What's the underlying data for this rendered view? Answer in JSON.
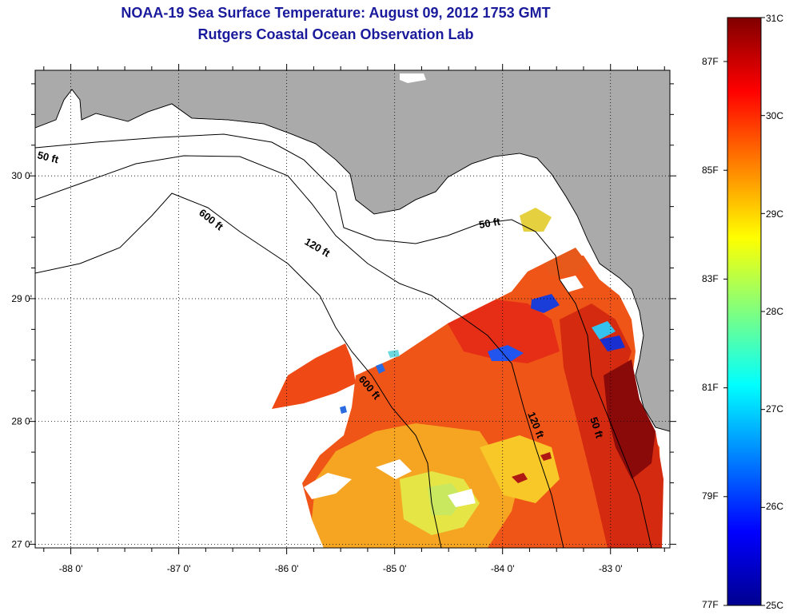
{
  "title": {
    "line1": "NOAA-19 Sea Surface Temperature:  August 09, 2012 1753 GMT",
    "line2": "Rutgers Coastal Ocean Observation Lab"
  },
  "map": {
    "type": "satellite sea surface temperature map",
    "region": "Florida Big Bend, eastern Gulf of Mexico",
    "lon_range": [
      -88.33,
      -82.45
    ],
    "lat_range": [
      26.97,
      30.86
    ],
    "grid": true,
    "lon_ticks": [
      "-88 0'",
      "-87 0'",
      "-86 0'",
      "-85 0'",
      "-84 0'",
      "-83 0'"
    ],
    "lat_ticks": [
      "30 0'",
      "29 0'",
      "28 0'",
      "27 0'"
    ],
    "land_color": "#aaaaaa",
    "no_data_color": "#ffffff",
    "isobaths": [
      {
        "label": "50 ft",
        "placement": "west"
      },
      {
        "label": "120 ft",
        "placement": "north"
      },
      {
        "label": "600 ft",
        "placement": "west"
      },
      {
        "label": "50 ft",
        "placement": "east"
      },
      {
        "label": "600 ft",
        "placement": "central"
      },
      {
        "label": "120 ft",
        "placement": "south"
      },
      {
        "label": "50 ft",
        "placement": "southeast"
      }
    ]
  },
  "colorbar": {
    "celsius": [
      "31C",
      "30C",
      "29C",
      "28C",
      "27C",
      "26C",
      "25C"
    ],
    "fahrenheit": [
      "87F",
      "85F",
      "83F",
      "81F",
      "79F",
      "77F"
    ],
    "c_min": 25,
    "c_max": 31
  }
}
